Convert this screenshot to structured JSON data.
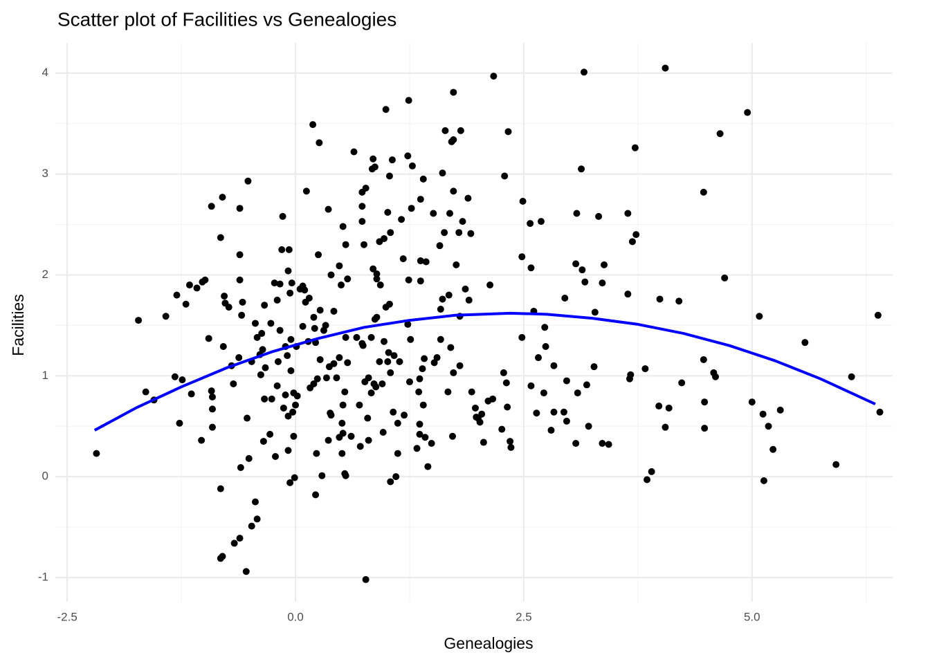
{
  "chart_data": {
    "type": "scatter",
    "title": "Scatter plot of Facilities vs Genealogies",
    "x_label": "Genealogies",
    "y_label": "Facilities",
    "xlim": [
      -2.63,
      6.54
    ],
    "ylim": [
      -1.24,
      4.3
    ],
    "xticks": [
      {
        "value": -2.5,
        "label": "-2.5"
      },
      {
        "value": 0,
        "label": "0.0"
      },
      {
        "value": 2.5,
        "label": "2.5"
      },
      {
        "value": 5,
        "label": "5.0"
      }
    ],
    "yticks": [
      -1,
      0,
      1,
      2,
      3,
      4
    ],
    "xminor": [
      -1.25,
      1.25,
      3.75,
      6.25
    ],
    "yminor": [
      -0.5,
      0.5,
      1.5,
      2.5,
      3.5
    ],
    "grid": true,
    "series": [
      {
        "color": "#000000",
        "x": [
          -2.18,
          -1.72,
          -1.64,
          -1.55,
          -1.42,
          -1.32,
          -1.3,
          -1.27,
          -1.24,
          -1.2,
          -1.16,
          -1.14,
          -1.08,
          -1.03,
          -1.02,
          -0.99,
          -0.95,
          -0.92,
          -0.92,
          -0.91,
          -0.91,
          -0.91,
          -0.82,
          -0.82,
          -0.82,
          -0.8,
          -0.8,
          -0.79,
          -0.78,
          -0.77,
          -0.73,
          -0.7,
          -0.68,
          -0.67,
          -0.62,
          -0.61,
          -0.61,
          -0.61,
          -0.61,
          -0.6,
          -0.59,
          -0.58,
          -0.54,
          -0.53,
          -0.52,
          -0.51,
          -0.48,
          -0.48,
          -0.44,
          -0.44,
          -0.42,
          -0.42,
          -0.39,
          -0.38,
          -0.37,
          -0.36,
          -0.35,
          -0.34,
          -0.34,
          -0.33,
          -0.28,
          -0.27,
          -0.26,
          -0.23,
          -0.22,
          -0.2,
          -0.2,
          -0.19,
          -0.17,
          -0.17,
          -0.15,
          -0.14,
          -0.13,
          -0.11,
          -0.11,
          -0.09,
          -0.08,
          -0.08,
          -0.08,
          -0.07,
          -0.06,
          -0.06,
          -0.05,
          -0.05,
          -0.04,
          -0.03,
          -0.02,
          -0.02,
          -0.01,
          0.0,
          0.01,
          0.02,
          0.05,
          0.08,
          0.08,
          0.1,
          0.11,
          0.12,
          0.14,
          0.15,
          0.16,
          0.19,
          0.2,
          0.2,
          0.21,
          0.22,
          0.22,
          0.23,
          0.24,
          0.25,
          0.26,
          0.27,
          0.27,
          0.29,
          0.31,
          0.33,
          0.34,
          0.36,
          0.36,
          0.37,
          0.38,
          0.39,
          0.39,
          0.42,
          0.42,
          0.45,
          0.48,
          0.48,
          0.48,
          0.5,
          0.51,
          0.51,
          0.52,
          0.52,
          0.52,
          0.54,
          0.54,
          0.55,
          0.55,
          0.55,
          0.57,
          0.57,
          0.61,
          0.64,
          0.67,
          0.7,
          0.71,
          0.73,
          0.73,
          0.73,
          0.73,
          0.74,
          0.75,
          0.76,
          0.77,
          0.77,
          0.79,
          0.8,
          0.8,
          0.83,
          0.83,
          0.84,
          0.85,
          0.85,
          0.86,
          0.87,
          0.87,
          0.89,
          0.89,
          0.89,
          0.88,
          0.92,
          0.92,
          0.93,
          0.95,
          0.96,
          0.97,
          0.97,
          0.99,
          0.99,
          1.01,
          1.01,
          1.02,
          1.03,
          1.03,
          1.04,
          1.04,
          1.04,
          1.06,
          1.07,
          1.08,
          1.1,
          1.12,
          1.14,
          1.12,
          1.16,
          1.18,
          1.19,
          1.23,
          1.23,
          1.24,
          1.24,
          1.25,
          1.26,
          1.27,
          1.28,
          1.33,
          1.35,
          1.37,
          1.37,
          1.36,
          1.36,
          1.36,
          1.37,
          1.39,
          1.4,
          1.4,
          1.41,
          1.42,
          1.43,
          1.45,
          1.49,
          1.51,
          1.52,
          1.55,
          1.58,
          1.59,
          1.59,
          1.61,
          1.61,
          1.63,
          1.64,
          1.67,
          1.68,
          1.7,
          1.69,
          1.71,
          1.72,
          1.73,
          1.73,
          1.73,
          1.73,
          1.76,
          1.79,
          1.8,
          1.8,
          1.81,
          1.83,
          1.86,
          1.89,
          1.9,
          1.92,
          1.93,
          1.97,
          1.98,
          2.0,
          2.02,
          2.04,
          2.06,
          2.11,
          2.13,
          2.16,
          2.17,
          2.26,
          2.28,
          2.29,
          2.31,
          2.32,
          2.33,
          2.35,
          2.36,
          2.48,
          2.48,
          2.49,
          2.57,
          2.58,
          2.58,
          2.61,
          2.64,
          2.66,
          2.69,
          2.72,
          2.73,
          2.74,
          2.8,
          2.83,
          2.83,
          2.94,
          2.95,
          2.97,
          2.97,
          3.07,
          3.07,
          3.08,
          3.09,
          3.13,
          3.14,
          3.16,
          3.17,
          3.19,
          3.21,
          3.27,
          3.28,
          3.32,
          3.36,
          3.36,
          3.38,
          3.43,
          3.64,
          3.64,
          3.66,
          3.67,
          3.69,
          3.72,
          3.73,
          3.83,
          3.85,
          3.9,
          3.98,
          3.99,
          4.05,
          4.05,
          4.09,
          4.2,
          4.23,
          4.47,
          4.47,
          4.48,
          4.48,
          4.58,
          4.6,
          4.65,
          4.7,
          4.95,
          5.0,
          5.08,
          5.12,
          5.13,
          5.18,
          5.23,
          5.31,
          5.58,
          5.92,
          6.09,
          6.38,
          6.4
        ],
        "y": [
          0.23,
          1.55,
          0.84,
          0.76,
          1.59,
          0.99,
          1.8,
          0.53,
          0.96,
          1.71,
          1.9,
          0.82,
          1.87,
          0.36,
          1.93,
          1.95,
          1.37,
          0.85,
          2.68,
          0.79,
          0.49,
          0.67,
          -0.12,
          2.37,
          -0.81,
          -0.79,
          2.77,
          1.29,
          1.79,
          1.72,
          1.68,
          1.1,
          0.92,
          -0.66,
          1.18,
          1.95,
          2.66,
          -0.61,
          2.2,
          0.09,
          1.6,
          1.73,
          -0.94,
          0.58,
          2.93,
          0.18,
          -0.49,
          1.14,
          -0.25,
          1.52,
          -0.42,
          1.38,
          1.21,
          1.01,
          1.42,
          1.26,
          0.35,
          0.77,
          1.7,
          1.08,
          0.42,
          1.52,
          0.77,
          1.92,
          0.2,
          0.9,
          1.75,
          1.14,
          1.91,
          1.45,
          2.25,
          2.58,
          0.68,
          0.81,
          1.29,
          1.2,
          2.04,
          0.6,
          0.26,
          2.25,
          1.82,
          -0.06,
          1.36,
          1.05,
          1.92,
          0.64,
          0.83,
          0.4,
          -0.01,
          0.71,
          1.29,
          0.8,
          1.86,
          1.89,
          1.49,
          1.85,
          1.73,
          2.83,
          1.34,
          1.77,
          0.88,
          3.49,
          1.58,
          0.92,
          1.47,
          -0.18,
          1.33,
          0.23,
          0.97,
          2.2,
          3.31,
          1.65,
          1.16,
          0.01,
          1.45,
          1.5,
          0.98,
          0.36,
          2.65,
          1.09,
          0.63,
          2.0,
          0.61,
          1.12,
          1.64,
          0.98,
          2.09,
          1.18,
          0.39,
          1.9,
          0.23,
          0.53,
          0.43,
          0.71,
          2.48,
          0.84,
          0.03,
          2.3,
          0.01,
          1.38,
          1.96,
          1.13,
          0.4,
          3.22,
          1.38,
          0.71,
          0.3,
          2.68,
          2.53,
          2.82,
          1.32,
          1.3,
          2.3,
          0.94,
          -1.02,
          2.86,
          0.58,
          0.36,
          0.98,
          1.38,
          0.83,
          3.05,
          2.06,
          3.15,
          0.92,
          1.56,
          3.07,
          1.58,
          2.01,
          1.96,
          0.89,
          2.33,
          1.14,
          1.9,
          0.92,
          0.44,
          2.36,
          1.34,
          1.68,
          3.64,
          1.14,
          2.62,
          1.23,
          1.71,
          2.98,
          -0.05,
          2.42,
          1.03,
          3.14,
          0.64,
          1.2,
          0.0,
          0.23,
          1.14,
          0.53,
          2.55,
          2.16,
          0.61,
          1.51,
          3.18,
          3.73,
          1.95,
          0.94,
          1.36,
          2.66,
          3.08,
          0.28,
          0.84,
          2.75,
          2.14,
          0.52,
          0.42,
          0.97,
          1.94,
          1.07,
          0.71,
          2.95,
          1.17,
          0.39,
          2.13,
          0.1,
          0.33,
          2.61,
          1.13,
          1.18,
          2.29,
          1.66,
          1.36,
          1.76,
          3.01,
          2.42,
          3.43,
          0.84,
          1.8,
          1.28,
          2.61,
          3.32,
          0.4,
          3.34,
          3.81,
          2.83,
          1.03,
          2.1,
          2.42,
          1.59,
          1.1,
          3.43,
          2.53,
          1.86,
          2.76,
          1.75,
          2.41,
          0.84,
          0.68,
          0.59,
          0.58,
          0.54,
          0.62,
          0.34,
          0.75,
          1.9,
          0.77,
          3.97,
          0.47,
          1.03,
          2.98,
          0.93,
          0.69,
          3.42,
          0.35,
          0.29,
          2.18,
          1.38,
          2.73,
          2.51,
          2.07,
          0.9,
          1.64,
          0.63,
          1.18,
          2.53,
          0.83,
          1.48,
          1.29,
          0.46,
          1.1,
          0.64,
          0.64,
          1.77,
          0.95,
          0.55,
          0.33,
          2.11,
          2.61,
          0.83,
          3.05,
          2.05,
          4.01,
          1.93,
          0.91,
          0.5,
          1.09,
          1.63,
          2.58,
          1.92,
          0.33,
          2.1,
          0.32,
          1.81,
          2.61,
          0.97,
          1.01,
          2.33,
          3.26,
          2.4,
          1.07,
          -0.03,
          0.05,
          0.7,
          1.76,
          0.49,
          4.05,
          0.68,
          1.74,
          0.93,
          2.82,
          1.16,
          0.48,
          0.74,
          1.03,
          0.99,
          3.4,
          1.97,
          3.61,
          0.74,
          1.59,
          0.62,
          -0.04,
          0.5,
          0.27,
          0.66,
          1.33,
          0.12,
          0.99,
          1.6,
          0.64
        ]
      }
    ],
    "trend": {
      "color": "#0000ff",
      "x": [
        -2.2,
        -1.75,
        -1.25,
        -0.75,
        -0.25,
        0.25,
        0.75,
        1.25,
        1.75,
        2.35,
        2.75,
        3.25,
        3.75,
        4.25,
        4.75,
        5.25,
        5.75,
        6.35
      ],
      "y": [
        0.46,
        0.68,
        0.89,
        1.08,
        1.24,
        1.37,
        1.48,
        1.55,
        1.6,
        1.62,
        1.61,
        1.57,
        1.51,
        1.42,
        1.3,
        1.15,
        0.97,
        0.72
      ]
    }
  }
}
